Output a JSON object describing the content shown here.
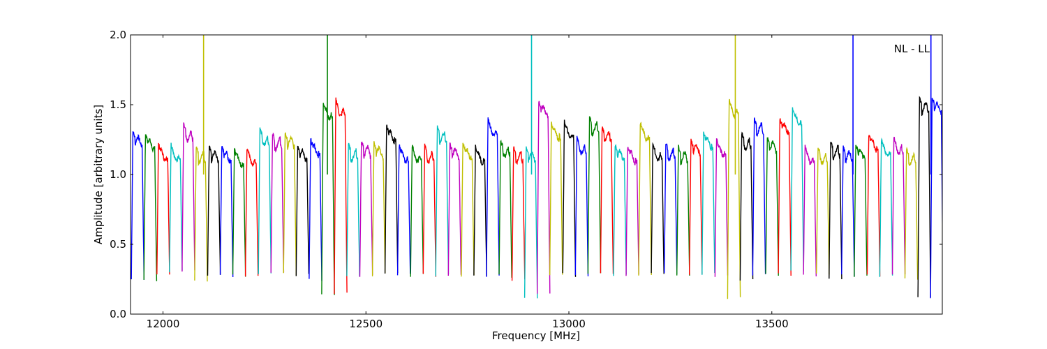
{
  "chart_data": {
    "type": "line",
    "title": "",
    "xlabel": "Frequency [MHz]",
    "ylabel": "Amplitude [arbitrary units]",
    "annotation": "NL - LL",
    "xlim": [
      11920,
      13920
    ],
    "ylim": [
      0.0,
      2.0
    ],
    "x_ticks": [
      12000,
      12500,
      13000,
      13500
    ],
    "x_tick_labels": [
      "12000",
      "12500",
      "13000",
      "13500"
    ],
    "y_ticks": [
      0.0,
      0.5,
      1.0,
      1.5,
      2.0
    ],
    "y_tick_labels": [
      "0.0",
      "0.5",
      "1.0",
      "1.5",
      "2.0"
    ],
    "grid": false,
    "legend": "none",
    "color_cycle": [
      "#0000ff",
      "#008000",
      "#ff0000",
      "#00bfbf",
      "#bf00bf",
      "#bfbf00",
      "#000000"
    ],
    "band_width_mhz": 31.25,
    "band_starts_mhz": [
      11922,
      11953,
      11985,
      12016,
      12047,
      12078,
      12110,
      12141,
      12172,
      12203,
      12235,
      12266,
      12297,
      12328,
      12360,
      12391,
      12422,
      12453,
      12485,
      12516,
      12547,
      12578,
      12610,
      12641,
      12672,
      12703,
      12735,
      12766,
      12797,
      12828,
      12860,
      12891,
      12922,
      12953,
      12985,
      13016,
      13047,
      13078,
      13110,
      13141,
      13172,
      13203,
      13235,
      13266,
      13297,
      13328,
      13360,
      13391,
      13422,
      13453,
      13485,
      13516,
      13547,
      13578,
      13610,
      13641,
      13672,
      13703,
      13735,
      13766,
      13797,
      13828,
      13860,
      13891
    ],
    "band_peak_levels": [
      1.31,
      1.29,
      1.22,
      1.22,
      1.36,
      1.2,
      1.2,
      1.2,
      1.18,
      1.19,
      1.33,
      1.3,
      1.3,
      1.21,
      1.25,
      1.52,
      1.54,
      1.22,
      1.24,
      1.23,
      1.35,
      1.21,
      1.21,
      1.21,
      1.34,
      1.22,
      1.22,
      1.2,
      1.4,
      1.25,
      1.2,
      1.2,
      1.53,
      1.37,
      1.38,
      1.27,
      1.41,
      1.34,
      1.21,
      1.2,
      1.37,
      1.22,
      1.23,
      1.2,
      1.25,
      1.3,
      1.25,
      1.54,
      1.3,
      1.4,
      1.27,
      1.4,
      1.47,
      1.2,
      1.2,
      1.24,
      1.2,
      1.22,
      1.29,
      1.25,
      1.27,
      1.19,
      1.55,
      1.55
    ],
    "band_dip_levels": [
      0.25,
      0.25,
      0.29,
      0.3,
      0.3,
      0.24,
      0.28,
      0.28,
      0.28,
      0.28,
      0.3,
      0.29,
      0.28,
      0.28,
      0.24,
      0.13,
      0.15,
      0.28,
      0.28,
      0.28,
      0.28,
      0.28,
      0.28,
      0.28,
      0.28,
      0.29,
      0.28,
      0.28,
      0.28,
      0.27,
      0.25,
      0.12,
      0.15,
      0.28,
      0.28,
      0.28,
      0.29,
      0.28,
      0.28,
      0.28,
      0.28,
      0.28,
      0.28,
      0.28,
      0.28,
      0.28,
      0.28,
      0.12,
      0.25,
      0.28,
      0.28,
      0.28,
      0.31,
      0.28,
      0.28,
      0.25,
      0.28,
      0.28,
      0.28,
      0.28,
      0.28,
      0.25,
      0.11,
      0.11
    ],
    "spikes": [
      {
        "x": 12100,
        "y": 2.0
      },
      {
        "x": 12405,
        "y": 2.0
      },
      {
        "x": 12908,
        "y": 2.0
      },
      {
        "x": 13410,
        "y": 2.0
      },
      {
        "x": 13700,
        "y": 2.0
      },
      {
        "x": 13892,
        "y": 2.0
      }
    ]
  }
}
